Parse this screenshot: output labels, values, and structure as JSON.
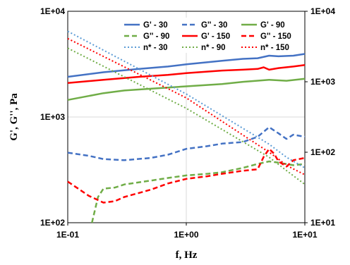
{
  "chart_data": {
    "type": "line",
    "title": "",
    "xlabel": "f, Hz",
    "ylabel": "G', G'', Pa",
    "x_scale": "log",
    "y_scale": "log",
    "y2_scale": "log",
    "xlim": [
      0.1,
      10
    ],
    "ylim": [
      100,
      10000
    ],
    "y2lim": [
      10,
      10000
    ],
    "x_ticks": [
      "1E-01",
      "1E+00",
      "1E+01"
    ],
    "y_ticks": [
      "1E+02",
      "1E+03",
      "1E+04"
    ],
    "y2_ticks": [
      "1E+01",
      "1E+02",
      "1E+03",
      "1E+04"
    ],
    "grid": "major",
    "legend_position": "top-right",
    "series": [
      {
        "name": "G' - 30",
        "color": "#4472C4",
        "style": "solid",
        "axis": "left",
        "points": [
          [
            0.1,
            2400
          ],
          [
            0.2,
            2650
          ],
          [
            0.4,
            2850
          ],
          [
            0.7,
            3000
          ],
          [
            1,
            3150
          ],
          [
            2,
            3400
          ],
          [
            3,
            3550
          ],
          [
            4,
            3600
          ],
          [
            5,
            3800
          ],
          [
            6,
            3750
          ],
          [
            8,
            3800
          ],
          [
            10,
            3950
          ]
        ]
      },
      {
        "name": "G'' - 30",
        "color": "#4472C4",
        "style": "dashed",
        "axis": "left",
        "points": [
          [
            0.1,
            460
          ],
          [
            0.15,
            430
          ],
          [
            0.2,
            400
          ],
          [
            0.3,
            390
          ],
          [
            0.5,
            410
          ],
          [
            0.7,
            440
          ],
          [
            1,
            500
          ],
          [
            1.5,
            530
          ],
          [
            2,
            560
          ],
          [
            3,
            580
          ],
          [
            4,
            650
          ],
          [
            5,
            800
          ],
          [
            6,
            700
          ],
          [
            7,
            620
          ],
          [
            8,
            680
          ],
          [
            10,
            650
          ]
        ]
      },
      {
        "name": "G' - 90",
        "color": "#70AD47",
        "style": "solid",
        "axis": "left",
        "points": [
          [
            0.1,
            1450
          ],
          [
            0.15,
            1580
          ],
          [
            0.2,
            1680
          ],
          [
            0.3,
            1780
          ],
          [
            0.5,
            1850
          ],
          [
            0.7,
            1900
          ],
          [
            1,
            1950
          ],
          [
            2,
            2050
          ],
          [
            3,
            2150
          ],
          [
            5,
            2250
          ],
          [
            7,
            2200
          ],
          [
            10,
            2300
          ]
        ]
      },
      {
        "name": "G'' - 90",
        "color": "#70AD47",
        "style": "dashed",
        "axis": "left",
        "points": [
          [
            0.16,
            100
          ],
          [
            0.18,
            175
          ],
          [
            0.2,
            210
          ],
          [
            0.25,
            215
          ],
          [
            0.3,
            230
          ],
          [
            0.5,
            250
          ],
          [
            0.7,
            265
          ],
          [
            1,
            280
          ],
          [
            1.5,
            290
          ],
          [
            2,
            300
          ],
          [
            3,
            330
          ],
          [
            4,
            360
          ],
          [
            5,
            380
          ],
          [
            6,
            370
          ],
          [
            8,
            350
          ],
          [
            10,
            360
          ]
        ]
      },
      {
        "name": "G' - 150",
        "color": "#FF0000",
        "style": "solid",
        "axis": "left",
        "points": [
          [
            0.1,
            2100
          ],
          [
            0.2,
            2250
          ],
          [
            0.4,
            2400
          ],
          [
            0.7,
            2500
          ],
          [
            1,
            2600
          ],
          [
            2,
            2750
          ],
          [
            3,
            2800
          ],
          [
            4,
            2850
          ],
          [
            4.5,
            2950
          ],
          [
            5,
            2800
          ],
          [
            6,
            2900
          ],
          [
            8,
            3000
          ],
          [
            10,
            3100
          ]
        ]
      },
      {
        "name": "G'' - 150",
        "color": "#FF0000",
        "style": "dashed",
        "axis": "left",
        "points": [
          [
            0.1,
            245
          ],
          [
            0.15,
            180
          ],
          [
            0.2,
            155
          ],
          [
            0.25,
            160
          ],
          [
            0.3,
            175
          ],
          [
            0.5,
            205
          ],
          [
            0.7,
            235
          ],
          [
            1,
            260
          ],
          [
            1.5,
            275
          ],
          [
            2,
            290
          ],
          [
            3,
            310
          ],
          [
            4,
            320
          ],
          [
            4.5,
            420
          ],
          [
            5,
            500
          ],
          [
            5.5,
            450
          ],
          [
            6,
            380
          ],
          [
            7,
            340
          ],
          [
            8,
            390
          ],
          [
            10,
            410
          ]
        ]
      },
      {
        "name": "n* - 30",
        "color": "#5B9BD5",
        "style": "dotted",
        "axis": "right",
        "points": [
          [
            0.1,
            5200
          ],
          [
            1,
            670
          ],
          [
            5,
            130
          ],
          [
            7,
            85
          ],
          [
            10,
            60
          ]
        ]
      },
      {
        "name": "n* - 90",
        "color": "#70AD47",
        "style": "dotted",
        "axis": "right",
        "points": [
          [
            0.1,
            3000
          ],
          [
            1,
            420
          ],
          [
            5,
            85
          ],
          [
            7,
            55
          ],
          [
            10,
            35
          ]
        ]
      },
      {
        "name": "n* - 150",
        "color": "#FF0000",
        "style": "dotted",
        "axis": "right",
        "points": [
          [
            0.1,
            4100
          ],
          [
            1,
            590
          ],
          [
            5,
            100
          ],
          [
            6,
            80
          ],
          [
            7,
            65
          ],
          [
            10,
            48
          ]
        ]
      }
    ]
  }
}
